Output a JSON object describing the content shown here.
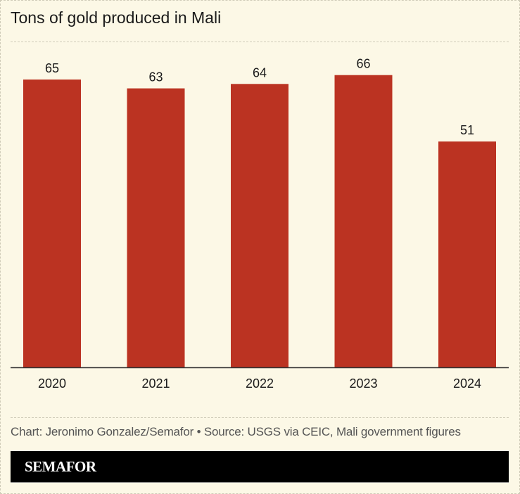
{
  "title": "Tons of gold produced in Mali",
  "source": "Chart: Jeronimo Gonzalez/Semafor • Source: USGS via CEIC, Mali government figures",
  "brand": "SEMAFOR",
  "colors": {
    "bar": "#bb3322",
    "background": "#fcf8e6"
  },
  "chart_data": {
    "type": "bar",
    "title": "Tons of gold produced in Mali",
    "categories": [
      "2020",
      "2021",
      "2022",
      "2023",
      "2024"
    ],
    "values": [
      65,
      63,
      64,
      66,
      51
    ],
    "ylim": [
      0,
      66
    ],
    "grid": false,
    "data_labels": true
  }
}
